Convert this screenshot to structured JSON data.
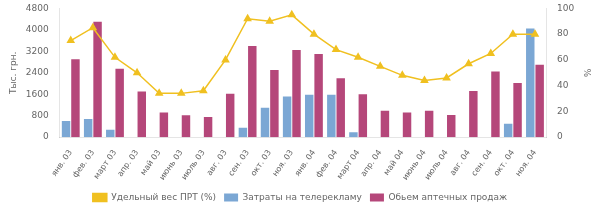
{
  "chart_data": {
    "type": "bar",
    "categories": [
      "янв. 03",
      "фев. 03",
      "март 03",
      "апр. 03",
      "май 03",
      "июнь 03",
      "июль 03",
      "авг. 03",
      "сен. 03",
      "окт. 03",
      "ноя. 03",
      "янв. 04",
      "фев. 04",
      "март 04",
      "апр. 04",
      "май 04",
      "июнь 04",
      "июль 04",
      "авг. 04",
      "сен. 04",
      "окт. 04",
      "ноя. 04"
    ],
    "series": [
      {
        "name": "Затраты на телерекламу",
        "color": "#7ba7d4",
        "type": "bar",
        "values": [
          600,
          680,
          280,
          0,
          0,
          0,
          0,
          0,
          350,
          1100,
          1520,
          1580,
          1580,
          180,
          0,
          0,
          0,
          0,
          0,
          0,
          500,
          4050
        ]
      },
      {
        "name": "Обьем аптечных продаж",
        "color": "#b5477a",
        "type": "bar",
        "values": [
          2900,
          4300,
          2550,
          1700,
          920,
          820,
          750,
          1620,
          3400,
          2500,
          3250,
          3100,
          2200,
          1600,
          980,
          920,
          980,
          830,
          1720,
          2450,
          2020,
          2700
        ]
      },
      {
        "name": "Удельный вес ПРТ (%)",
        "color": "#f0c020",
        "type": "line",
        "axis": "y2",
        "marker": "triangle",
        "values": [
          75,
          85,
          62,
          50,
          34,
          34,
          36,
          60,
          92,
          90,
          95,
          80,
          68,
          62,
          55,
          48,
          44,
          46,
          57,
          65,
          80,
          80
        ]
      }
    ],
    "ylabel": "Тыс. грн.",
    "y2label": "%",
    "ylim": [
      0,
      4800
    ],
    "yticks": [
      0,
      800,
      1600,
      2400,
      3200,
      4000,
      4800
    ],
    "y2lim": [
      0,
      100
    ],
    "y2ticks": [
      0,
      20,
      40,
      60,
      80,
      100
    ],
    "grid": false,
    "legend": "bottom"
  }
}
